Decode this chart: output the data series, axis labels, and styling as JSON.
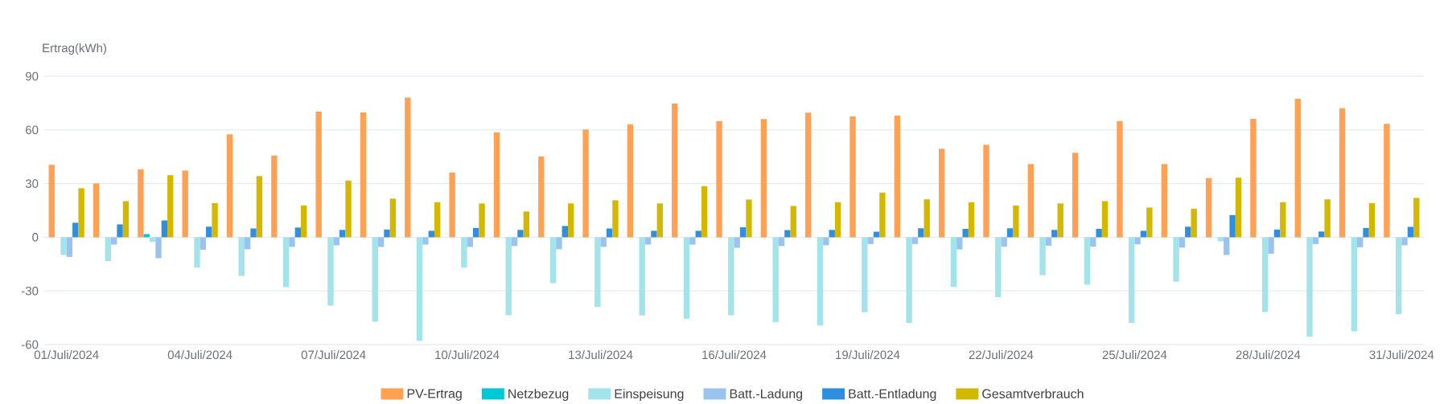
{
  "chart_data": {
    "type": "bar",
    "ylabel": "Ertrag(kWh)",
    "categories": [
      "01/Juli/2024",
      null,
      null,
      "04/Juli/2024",
      null,
      null,
      "07/Juli/2024",
      null,
      null,
      "10/Juli/2024",
      null,
      null,
      "13/Juli/2024",
      null,
      null,
      "16/Juli/2024",
      null,
      null,
      "19/Juli/2024",
      null,
      null,
      "22/Juli/2024",
      null,
      null,
      "25/Juli/2024",
      null,
      null,
      "28/Juli/2024",
      null,
      null,
      "31/Juli/2024"
    ],
    "series": [
      {
        "name": "PV-Ertrag",
        "color": "#ffa155",
        "values": [
          40.5,
          30.1,
          38,
          37.3,
          57.6,
          45.7,
          70.2,
          69.8,
          78.1,
          36.2,
          58.7,
          45.2,
          60.3,
          63.2,
          74.7,
          65,
          66.1,
          69.7,
          67.5,
          68,
          49.5,
          51.7,
          40.9,
          47.2,
          65,
          40.9,
          33.1,
          66.2,
          77.4,
          72.2,
          63.4
        ]
      },
      {
        "name": "Netzbezug",
        "color": "#00c8d7",
        "values": [
          0,
          0,
          1.8,
          0,
          0,
          0,
          0,
          0,
          0,
          0,
          0,
          0,
          0,
          0,
          0,
          0,
          0,
          0,
          0,
          0,
          0,
          0,
          0,
          0,
          0,
          0,
          0,
          0,
          0,
          0,
          0
        ]
      },
      {
        "name": "Einspeisung",
        "color": "#a3e3ea",
        "values": [
          -9.9,
          -13.3,
          -2.5,
          -16.9,
          -21.6,
          -27.9,
          -38.2,
          -47.2,
          -58,
          -16.9,
          -43.6,
          -25.7,
          -38.9,
          -43.7,
          -45.5,
          -43.6,
          -47.5,
          -49.3,
          -41.9,
          -47.9,
          -27.7,
          -33.5,
          -21.2,
          -26.5,
          -47.9,
          -24.8,
          -2.3,
          -41.8,
          -55.6,
          -52.6,
          -43
        ]
      },
      {
        "name": "Batt.-Ladung",
        "color": "#9ac4ef",
        "values": [
          -11,
          -4.1,
          -11.7,
          -7,
          -6.7,
          -5.4,
          -4.5,
          -5.4,
          -4.1,
          -5.4,
          -4.9,
          -6.7,
          -5.4,
          -4.1,
          -4.1,
          -5.9,
          -4.9,
          -4.5,
          -3.8,
          -3.8,
          -6.8,
          -5.2,
          -4.7,
          -5.2,
          -4,
          -5.8,
          -9.9,
          -9.2,
          -3.8,
          -5.6,
          -4.5
        ]
      },
      {
        "name": "Batt.-Entladung",
        "color": "#2f8ee0",
        "values": [
          8.1,
          7.2,
          9.4,
          5.9,
          4.9,
          5.4,
          4.1,
          4.3,
          3.6,
          5.2,
          4.1,
          6.3,
          4.9,
          3.6,
          3.6,
          5.6,
          4,
          4.1,
          3.1,
          5,
          4.7,
          5,
          4.1,
          4.7,
          3.6,
          5.9,
          12.4,
          4.3,
          3.2,
          5.2,
          5.8
        ]
      },
      {
        "name": "Gesamtverbrauch",
        "color": "#d4b800",
        "values": [
          27.4,
          20.2,
          34.7,
          19.1,
          34.2,
          17.8,
          31.7,
          21.6,
          19.6,
          18.9,
          14.4,
          18.9,
          20.7,
          18.9,
          28.6,
          21.1,
          17.5,
          19.6,
          25,
          21.2,
          19.6,
          17.8,
          18.9,
          20.2,
          16.6,
          16,
          33.3,
          19.6,
          21.2,
          19.1,
          22
        ]
      }
    ],
    "ylim": [
      -60,
      90
    ],
    "yticks": [
      -60,
      -30,
      0,
      30,
      60,
      90
    ],
    "grid": "y",
    "legend": "bottom"
  }
}
